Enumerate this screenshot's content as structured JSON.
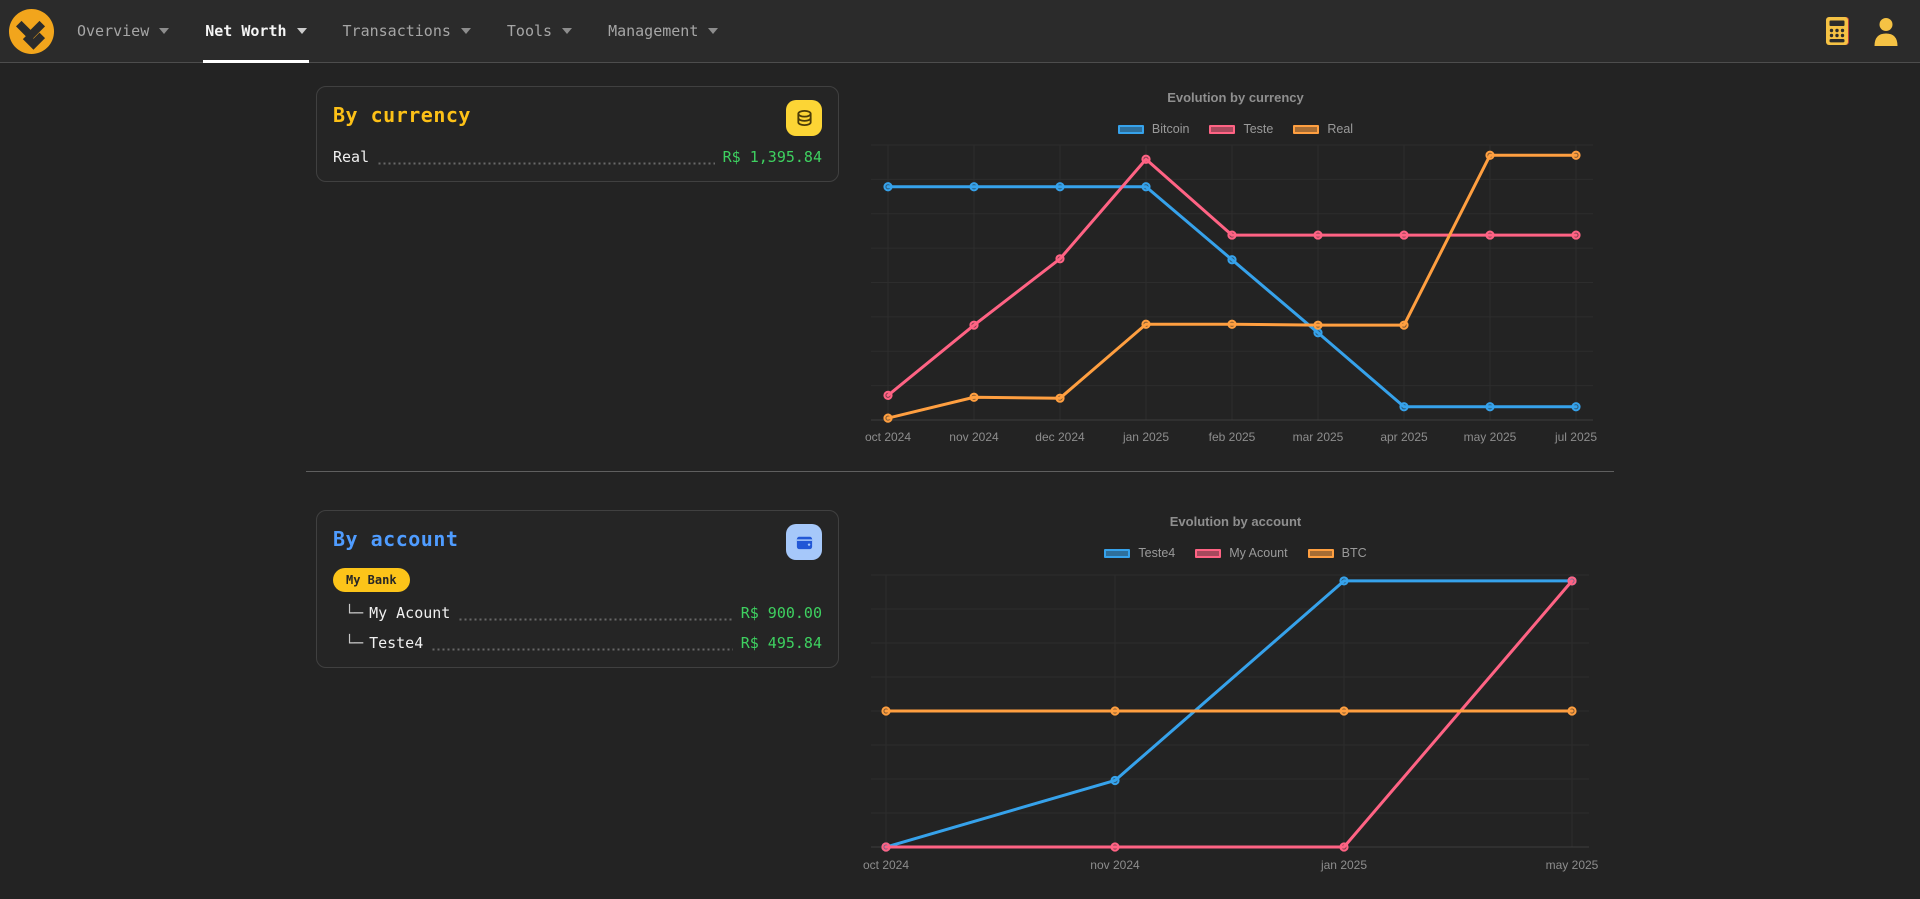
{
  "navbar": {
    "items": [
      {
        "label": "Overview",
        "active": false
      },
      {
        "label": "Net Worth",
        "active": true
      },
      {
        "label": "Transactions",
        "active": false
      },
      {
        "label": "Tools",
        "active": false
      },
      {
        "label": "Management",
        "active": false
      }
    ],
    "right_icons": [
      "calculator-icon",
      "user-icon"
    ],
    "brand_icon": "brand-logo-icon"
  },
  "colors": {
    "accent_yellow": "#fcc419",
    "title_yellow": "#fdc117",
    "title_blue": "#4f9cff",
    "value_green": "#3ed160",
    "chart_blue": "#36a2eb",
    "chart_pink": "#ff6384",
    "chart_orange": "#ff9f40"
  },
  "currency_card": {
    "title": "By currency",
    "icon": "coins-icon",
    "rows": [
      {
        "label": "Real",
        "value": "R$ 1,395.84"
      }
    ]
  },
  "account_card": {
    "title": "By account",
    "icon": "wallet-icon",
    "badge": "My Bank",
    "rows": [
      {
        "prefix": "└─",
        "label": "My Acount",
        "value": "R$ 900.00"
      },
      {
        "prefix": "└─",
        "label": "Teste4",
        "value": "R$ 495.84"
      }
    ]
  },
  "chart_data": [
    {
      "type": "line",
      "title": "Evolution by currency",
      "categories": [
        "oct 2024",
        "nov 2024",
        "dec 2024",
        "jan 2025",
        "feb 2025",
        "mar 2025",
        "apr 2025",
        "may 2025",
        "jul 2025"
      ],
      "series": [
        {
          "name": "Bitcoin",
          "color": "#36a2eb",
          "values": [
            1230,
            1230,
            1230,
            1230,
            845,
            460,
            70,
            70,
            70
          ]
        },
        {
          "name": "Teste",
          "color": "#ff6384",
          "values": [
            130,
            500,
            850,
            1375,
            975,
            975,
            975,
            975,
            975
          ]
        },
        {
          "name": "Real",
          "color": "#ff9f40",
          "values": [
            10,
            120,
            115,
            505,
            505,
            500,
            500,
            1395.84,
            1395.84
          ]
        }
      ],
      "ylim": [
        0,
        1450
      ],
      "y_axis_labels": false,
      "grid": true,
      "legend_position": "top"
    },
    {
      "type": "line",
      "title": "Evolution by account",
      "categories": [
        "oct 2024",
        "nov 2024",
        "jan 2025",
        "may 2025"
      ],
      "series": [
        {
          "name": "Teste4",
          "color": "#36a2eb",
          "values": [
            0,
            225,
            900,
            900
          ]
        },
        {
          "name": "My Acount",
          "color": "#ff6384",
          "values": [
            0,
            0,
            0,
            900
          ]
        },
        {
          "name": "BTC",
          "color": "#ff9f40",
          "values": [
            460,
            460,
            460,
            460
          ]
        }
      ],
      "ylim": [
        0,
        920
      ],
      "y_axis_labels": false,
      "grid": true,
      "legend_position": "top"
    }
  ]
}
